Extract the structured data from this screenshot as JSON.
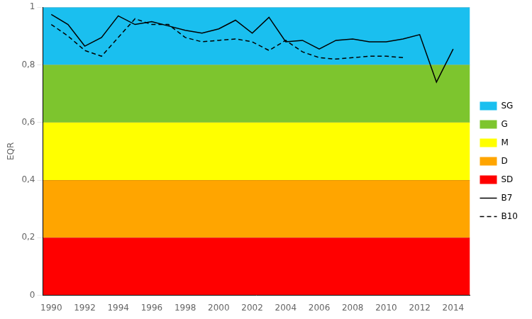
{
  "chart_data": {
    "type": "line",
    "ylabel": "EQR",
    "xlim": [
      1989.5,
      2015.0
    ],
    "ylim": [
      0,
      1
    ],
    "xticks": [
      1990,
      1992,
      1994,
      1996,
      1998,
      2000,
      2002,
      2004,
      2006,
      2008,
      2010,
      2012,
      2014
    ],
    "yticks": [
      0,
      {
        "value": 0.2,
        "label": "0,2"
      },
      {
        "value": 0.4,
        "label": "0,4"
      },
      {
        "value": 0.6,
        "label": "0,6"
      },
      {
        "value": 0.8,
        "label": "0,8"
      },
      1
    ],
    "grid": "y",
    "legend": "right",
    "bands": [
      {
        "name": "SG",
        "ymin": 0.8,
        "ymax": 1.0,
        "color": "#1ABFEF"
      },
      {
        "name": "G",
        "ymin": 0.6,
        "ymax": 0.8,
        "color": "#7DC52E"
      },
      {
        "name": "M",
        "ymin": 0.4,
        "ymax": 0.6,
        "color": "#FFFF00"
      },
      {
        "name": "D",
        "ymin": 0.2,
        "ymax": 0.4,
        "color": "#FFA500"
      },
      {
        "name": "SD",
        "ymin": 0.0,
        "ymax": 0.2,
        "color": "#FF0000"
      }
    ],
    "series": [
      {
        "name": "B7",
        "color": "#000000",
        "line_style": "solid",
        "x": [
          1990,
          1991,
          1992,
          1993,
          1994,
          1995,
          1996,
          1997,
          1998,
          1999,
          2000,
          2001,
          2002,
          2003,
          2004,
          2005,
          2006,
          2007,
          2008,
          2009,
          2010,
          2011,
          2012,
          2013,
          2014
        ],
        "values": [
          0.975,
          0.94,
          0.865,
          0.895,
          0.97,
          0.94,
          0.95,
          0.935,
          0.92,
          0.91,
          0.925,
          0.955,
          0.91,
          0.965,
          0.88,
          0.885,
          0.855,
          0.885,
          0.89,
          0.88,
          0.88,
          0.89,
          0.905,
          0.74,
          0.855
        ]
      },
      {
        "name": "B10",
        "color": "#000000",
        "line_style": "dashed",
        "x": [
          1990,
          1991,
          1992,
          1993,
          1994,
          1995,
          1996,
          1997,
          1998,
          1999,
          2000,
          2001,
          2002,
          2003,
          2004,
          2005,
          2006,
          2007,
          2008,
          2009,
          2010,
          2011
        ],
        "values": [
          0.94,
          0.9,
          0.85,
          0.83,
          0.895,
          0.96,
          0.94,
          0.94,
          0.895,
          0.88,
          0.885,
          0.89,
          0.88,
          0.85,
          0.885,
          0.845,
          0.825,
          0.82,
          0.825,
          0.83,
          0.83,
          0.825
        ]
      }
    ]
  }
}
